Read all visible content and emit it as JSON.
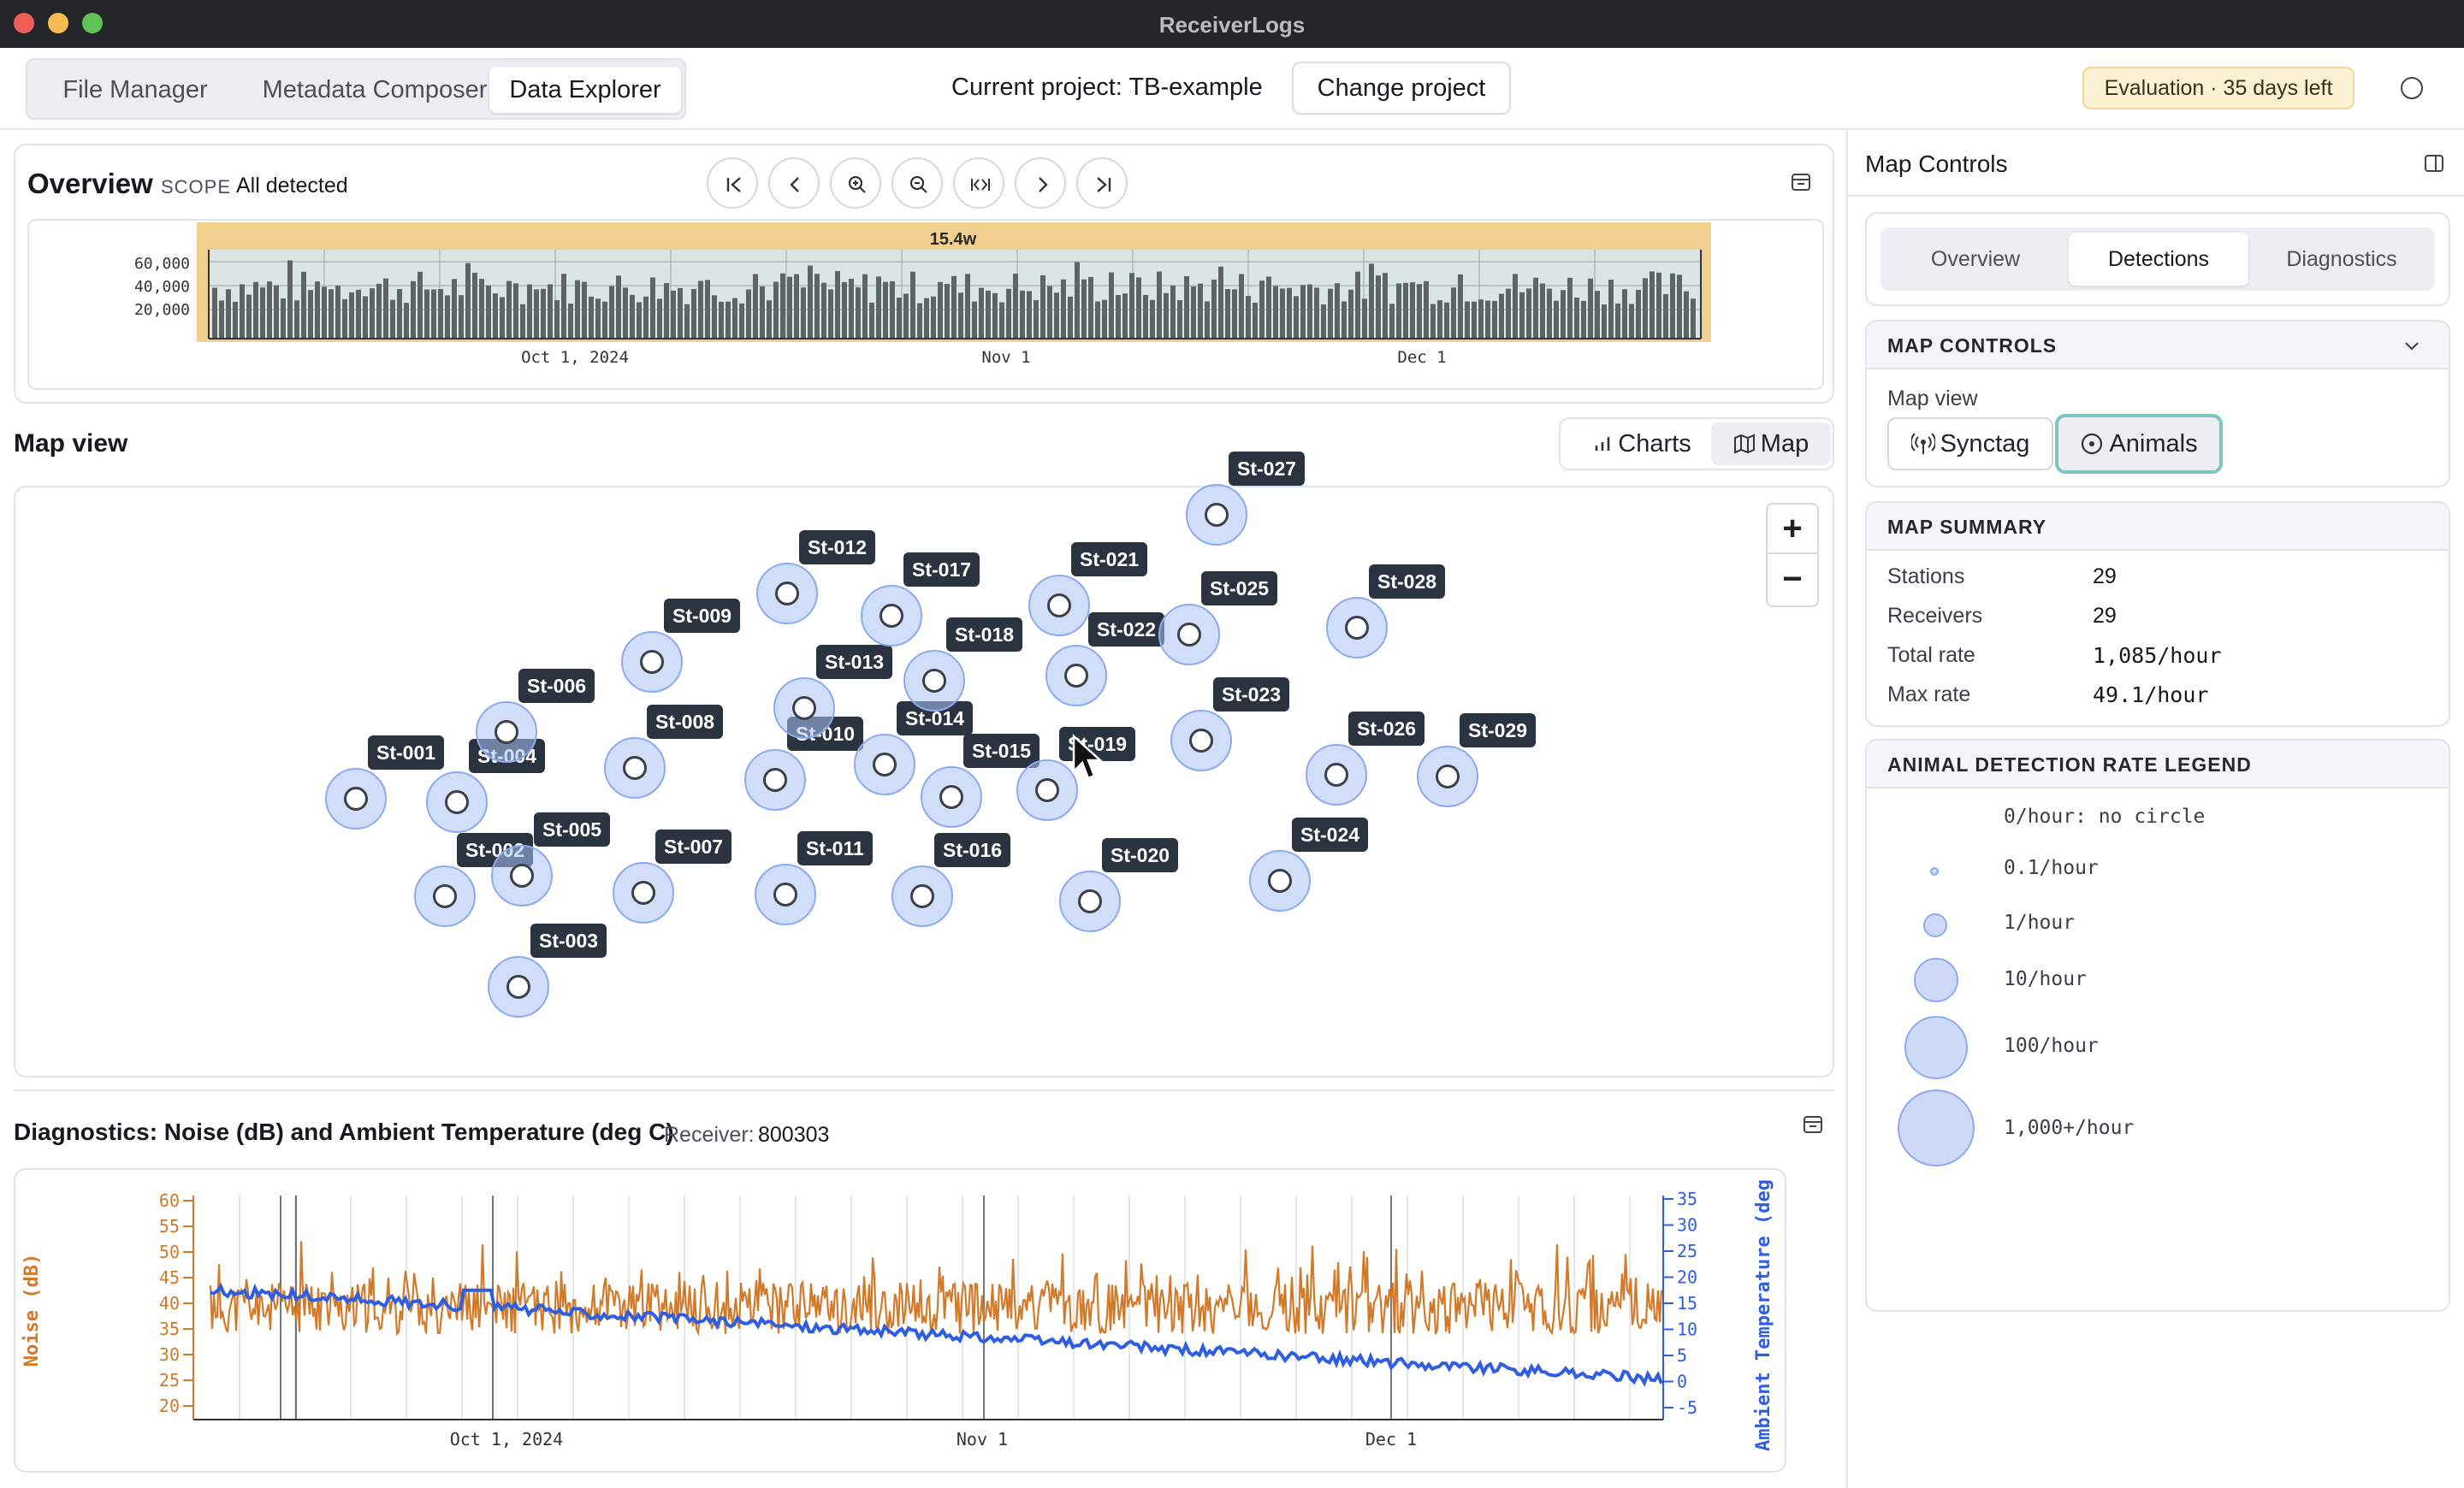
{
  "window": {
    "title": "ReceiverLogs"
  },
  "nav": {
    "tabs": [
      "File Manager",
      "Metadata Composer",
      "Data Explorer"
    ],
    "active": "Data Explorer"
  },
  "project": {
    "label": "Current project: TB-example",
    "change_button": "Change project"
  },
  "evaluation": {
    "badge": "Evaluation · 35 days left"
  },
  "overview": {
    "title": "Overview",
    "scope_label": "SCOPE",
    "scope_value": "All detected",
    "window_label": "15.4w",
    "y_ticks": [
      "60,000",
      "40,000",
      "20,000"
    ],
    "x_ticks": [
      "Oct 1, 2024",
      "Nov 1",
      "Dec 1"
    ]
  },
  "map_view": {
    "title": "Map view",
    "charts_button": "Charts",
    "map_button": "Map",
    "zoom_in": "+",
    "zoom_out": "−",
    "stations": [
      "St-001",
      "St-002",
      "St-003",
      "St-004",
      "St-005",
      "St-006",
      "St-007",
      "St-008",
      "St-009",
      "St-010",
      "St-011",
      "St-012",
      "St-013",
      "St-014",
      "St-015",
      "St-016",
      "St-017",
      "St-018",
      "St-019",
      "St-020",
      "St-021",
      "St-022",
      "St-023",
      "St-024",
      "St-025",
      "St-026",
      "St-027",
      "St-028",
      "St-029"
    ]
  },
  "diagnostics": {
    "title": "Diagnostics: Noise (dB) and Ambient Temperature (deg C)",
    "receiver_label": "Receiver:",
    "receiver_value": "800303",
    "y_left_label": "Noise (dB)",
    "y_right_label": "Ambient Temperature (deg",
    "y_left_ticks": [
      "60",
      "55",
      "50",
      "45",
      "40",
      "35",
      "30",
      "25",
      "20"
    ],
    "y_right_ticks": [
      "35",
      "30",
      "25",
      "20",
      "15",
      "10",
      "5",
      "0",
      "-5"
    ],
    "x_ticks": [
      "Oct 1, 2024",
      "Nov 1",
      "Dec 1"
    ],
    "colors": {
      "noise": "#d07a2a",
      "temperature": "#2f5fe0"
    }
  },
  "sidebar": {
    "title": "Map Controls",
    "tabs": [
      "Overview",
      "Detections",
      "Diagnostics"
    ],
    "active_tab": "Detections",
    "map_controls_header": "MAP CONTROLS",
    "map_view_label": "Map view",
    "synctag_button": "Synctag",
    "animals_button": "Animals",
    "summary_header": "MAP SUMMARY",
    "summary": [
      {
        "label": "Stations",
        "value": "29"
      },
      {
        "label": "Receivers",
        "value": "29"
      },
      {
        "label": "Total rate",
        "value": "1,085/hour"
      },
      {
        "label": "Max rate",
        "value": "49.1/hour"
      }
    ],
    "legend_header": "ANIMAL DETECTION RATE LEGEND",
    "legend": [
      "0/hour: no circle",
      "0.1/hour",
      "1/hour",
      "10/hour",
      "100/hour",
      "1,000+/hour"
    ]
  }
}
